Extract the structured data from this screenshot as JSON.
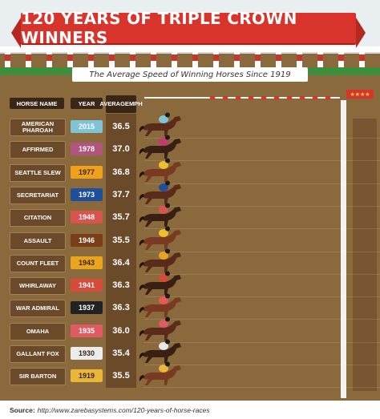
{
  "title": "120 YEARS OF TRIPLE CROWN WINNERS",
  "subtitle": "The Average Speed of Winning Horses Since 1919",
  "headers": {
    "name": "HORSE NAME",
    "year": "YEAR",
    "mph_line1": "AVERAGE",
    "mph_line2": "MPH"
  },
  "source": {
    "label": "Source:",
    "url": "http://www.zarebasystems.com/120-years-of-horse-races"
  },
  "colors": {
    "banner": "#d9342b",
    "dirt": "#8a6a3d",
    "cell": "#6b4a2a"
  },
  "chart_data": {
    "type": "table",
    "title": "120 YEARS OF TRIPLE CROWN WINNERS",
    "subtitle": "The Average Speed of Winning Horses Since 1919",
    "columns": [
      "HORSE NAME",
      "YEAR",
      "AVERAGE MPH"
    ],
    "rows": [
      {
        "name": "AMERICAN PHAROAH",
        "year": "2015",
        "mph": "36.5",
        "year_color": "#7ec3d6",
        "year_text": "#ffffff"
      },
      {
        "name": "AFFIRMED",
        "year": "1978",
        "mph": "37.0",
        "year_color": "#b0567e",
        "year_text": "#ffffff"
      },
      {
        "name": "SEATTLE SLEW",
        "year": "1977",
        "mph": "36.8",
        "year_color": "#f0a11c",
        "year_text": "#3a2616"
      },
      {
        "name": "SECRETARIAT",
        "year": "1973",
        "mph": "37.7",
        "year_color": "#1f4f9a",
        "year_text": "#ffffff"
      },
      {
        "name": "CITATION",
        "year": "1948",
        "mph": "35.7",
        "year_color": "#d9534f",
        "year_text": "#ffffff"
      },
      {
        "name": "ASSAULT",
        "year": "1946",
        "mph": "35.5",
        "year_color": "#7a3f16",
        "year_text": "#ffffff"
      },
      {
        "name": "COUNT FLEET",
        "year": "1943",
        "mph": "36.4",
        "year_color": "#e8a51d",
        "year_text": "#3a2616"
      },
      {
        "name": "WHIRLAWAY",
        "year": "1941",
        "mph": "36.3",
        "year_color": "#d64a3a",
        "year_text": "#ffffff"
      },
      {
        "name": "WAR ADMIRAL",
        "year": "1937",
        "mph": "36.3",
        "year_color": "#222222",
        "year_text": "#ffffff"
      },
      {
        "name": "OMAHA",
        "year": "1935",
        "mph": "36.0",
        "year_color": "#e05a62",
        "year_text": "#ffffff"
      },
      {
        "name": "GALLANT FOX",
        "year": "1930",
        "mph": "35.4",
        "year_color": "#ececec",
        "year_text": "#3a2616"
      },
      {
        "name": "SIR BARTON",
        "year": "1919",
        "mph": "35.5",
        "year_color": "#e9b63a",
        "year_text": "#3a2616"
      }
    ]
  }
}
